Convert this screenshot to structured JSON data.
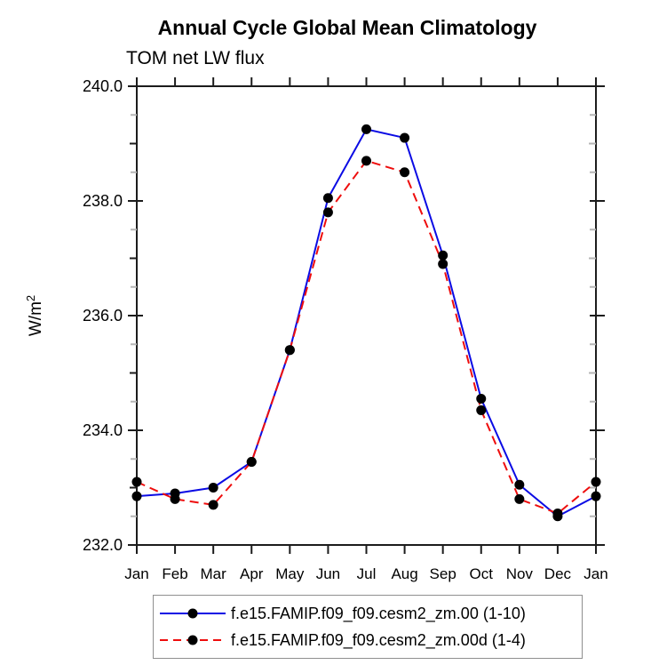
{
  "chart_data": {
    "type": "line",
    "title": "Annual Cycle Global Mean Climatology",
    "subtitle": "TOM net LW flux",
    "ylabel": "W/m²",
    "categories": [
      "Jan",
      "Feb",
      "Mar",
      "Apr",
      "May",
      "Jun",
      "Jul",
      "Aug",
      "Sep",
      "Oct",
      "Nov",
      "Dec",
      "Jan"
    ],
    "series": [
      {
        "name": "f.e15.FAMIP.f09_f09.cesm2_zm.00 (1-10)",
        "color": "#0b0be4",
        "line_style": "solid",
        "marker": "filled-circle",
        "marker_color": "#000000",
        "values": [
          232.85,
          232.9,
          233.0,
          233.45,
          235.4,
          238.05,
          239.25,
          239.1,
          237.05,
          234.55,
          233.05,
          232.5,
          232.85
        ]
      },
      {
        "name": "f.e15.FAMIP.f09_f09.cesm2_zm.00d (1-4)",
        "color": "#ee0d0d",
        "line_style": "dashed",
        "marker": "filled-circle",
        "marker_color": "#000000",
        "values": [
          233.1,
          232.8,
          232.7,
          233.45,
          235.4,
          237.8,
          238.7,
          238.5,
          236.9,
          234.35,
          232.8,
          232.55,
          233.1
        ]
      }
    ],
    "ylim": [
      232.0,
      240.0
    ],
    "ytick_major": [
      232.0,
      234.0,
      236.0,
      238.0,
      240.0
    ],
    "ytick_major_labels": [
      "232.0",
      "234.0",
      "236.0",
      "238.0",
      "240.0"
    ],
    "ytick_minor_step": 0.5,
    "xlabel": "",
    "grid": false,
    "legend_position": "bottom",
    "colors": {
      "axis": "#1c1c1c",
      "minor_tick": "#b5b5b5",
      "text": "#000000",
      "legend_border": "#8f8f8f",
      "background": "#ffffff"
    }
  }
}
